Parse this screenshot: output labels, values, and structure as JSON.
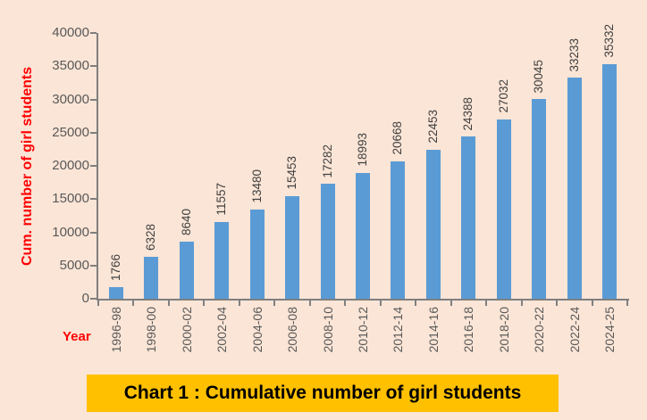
{
  "chart_data": {
    "type": "bar",
    "title": "Chart 1 : Cumulative number of girl students",
    "xlabel": "Year",
    "ylabel": "Cum. number of girl students",
    "categories": [
      "1996-98",
      "1998-00",
      "2000-02",
      "2002-04",
      "2004-06",
      "2006-08",
      "2008-10",
      "2010-12",
      "2012-14",
      "2014-16",
      "2016-18",
      "2018-20",
      "2020-22",
      "2022-24",
      "2024-25"
    ],
    "values": [
      1766,
      6328,
      8640,
      11557,
      13480,
      15453,
      17282,
      18993,
      20668,
      22453,
      24388,
      27032,
      30045,
      33233,
      35332
    ],
    "ylim": [
      0,
      40000
    ],
    "ytick_step": 5000,
    "grid": false,
    "legend": false,
    "value_labels_rotation": -90,
    "xtick_rotation": -90
  },
  "colors": {
    "background": "#FBE5D6",
    "bar": "#5B9BD5",
    "axis_line": "#7F7F7F",
    "tick_label": "#595959",
    "value_label": "#404040",
    "axis_title": "#FF0000",
    "title_background": "#FFC000",
    "title_text": "#000000"
  }
}
